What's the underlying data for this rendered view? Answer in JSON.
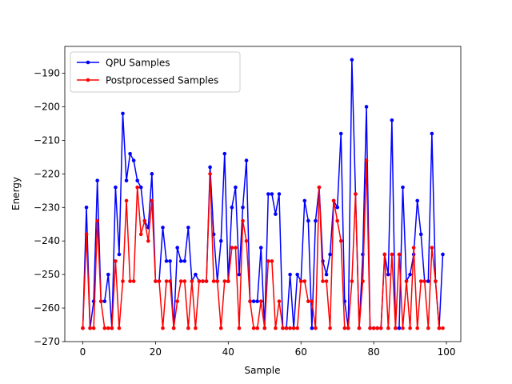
{
  "chart_data": {
    "type": "line",
    "xlabel": "Sample",
    "ylabel": "Energy",
    "x": [
      0,
      1,
      2,
      3,
      4,
      5,
      6,
      7,
      8,
      9,
      10,
      11,
      12,
      13,
      14,
      15,
      16,
      17,
      18,
      19,
      20,
      21,
      22,
      23,
      24,
      25,
      26,
      27,
      28,
      29,
      30,
      31,
      32,
      33,
      34,
      35,
      36,
      37,
      38,
      39,
      40,
      41,
      42,
      43,
      44,
      45,
      46,
      47,
      48,
      49,
      50,
      51,
      52,
      53,
      54,
      55,
      56,
      57,
      58,
      59,
      60,
      61,
      62,
      63,
      64,
      65,
      66,
      67,
      68,
      69,
      70,
      71,
      72,
      73,
      74,
      75,
      76,
      77,
      78,
      79,
      80,
      81,
      82,
      83,
      84,
      85,
      86,
      87,
      88,
      89,
      90,
      91,
      92,
      93,
      94,
      95,
      96,
      97,
      98,
      99
    ],
    "series": [
      {
        "name": "QPU Samples",
        "color": "#0000ff",
        "values": [
          -266,
          -230,
          -266,
          -258,
          -222,
          -258,
          -258,
          -250,
          -266,
          -224,
          -244,
          -202,
          -222,
          -214,
          -216,
          -222,
          -224,
          -234,
          -236,
          -220,
          -252,
          -252,
          -236,
          -246,
          -246,
          -266,
          -242,
          -246,
          -246,
          -236,
          -252,
          -250,
          -252,
          -252,
          -252,
          -218,
          -238,
          -252,
          -240,
          -214,
          -252,
          -230,
          -224,
          -250,
          -230,
          -216,
          -258,
          -258,
          -258,
          -242,
          -266,
          -226,
          -226,
          -232,
          -226,
          -266,
          -266,
          -250,
          -266,
          -250,
          -252,
          -228,
          -234,
          -266,
          -234,
          -224,
          -246,
          -250,
          -244,
          -228,
          -230,
          -208,
          -258,
          -266,
          -186,
          -226,
          -266,
          -244,
          -200,
          -266,
          -266,
          -266,
          -266,
          -244,
          -250,
          -204,
          -266,
          -266,
          -224,
          -252,
          -250,
          -244,
          -228,
          -238,
          -252,
          -252,
          -208,
          -252,
          -266,
          -244
        ]
      },
      {
        "name": "Postprocessed Samples",
        "color": "#ff0000",
        "values": [
          -266,
          -238,
          -266,
          -266,
          -234,
          -258,
          -266,
          -266,
          -266,
          -246,
          -266,
          -252,
          -228,
          -252,
          -252,
          -224,
          -238,
          -234,
          -240,
          -228,
          -252,
          -252,
          -266,
          -252,
          -252,
          -266,
          -258,
          -252,
          -252,
          -266,
          -252,
          -266,
          -252,
          -252,
          -252,
          -220,
          -252,
          -252,
          -266,
          -252,
          -252,
          -242,
          -242,
          -266,
          -234,
          -240,
          -258,
          -266,
          -266,
          -258,
          -266,
          -246,
          -246,
          -266,
          -258,
          -266,
          -266,
          -266,
          -266,
          -266,
          -252,
          -252,
          -258,
          -258,
          -266,
          -224,
          -252,
          -252,
          -266,
          -228,
          -234,
          -240,
          -266,
          -266,
          -252,
          -226,
          -266,
          -252,
          -216,
          -266,
          -266,
          -266,
          -266,
          -244,
          -266,
          -244,
          -266,
          -244,
          -266,
          -252,
          -266,
          -242,
          -266,
          -252,
          -252,
          -266,
          -242,
          -252,
          -266,
          -266
        ]
      }
    ],
    "xlim": [
      -4.95,
      103.95
    ],
    "ylim": [
      -270,
      -182
    ],
    "xticks": [
      0,
      20,
      40,
      60,
      80,
      100
    ],
    "yticks": [
      {
        "value": -270,
        "label": "−270"
      },
      {
        "value": -260,
        "label": "−260"
      },
      {
        "value": -250,
        "label": "−250"
      },
      {
        "value": -240,
        "label": "−240"
      },
      {
        "value": -230,
        "label": "−230"
      },
      {
        "value": -220,
        "label": "−220"
      },
      {
        "value": -210,
        "label": "−210"
      },
      {
        "value": -200,
        "label": "−200"
      },
      {
        "value": -190,
        "label": "−190"
      }
    ],
    "grid": false,
    "legend": "upper left"
  }
}
